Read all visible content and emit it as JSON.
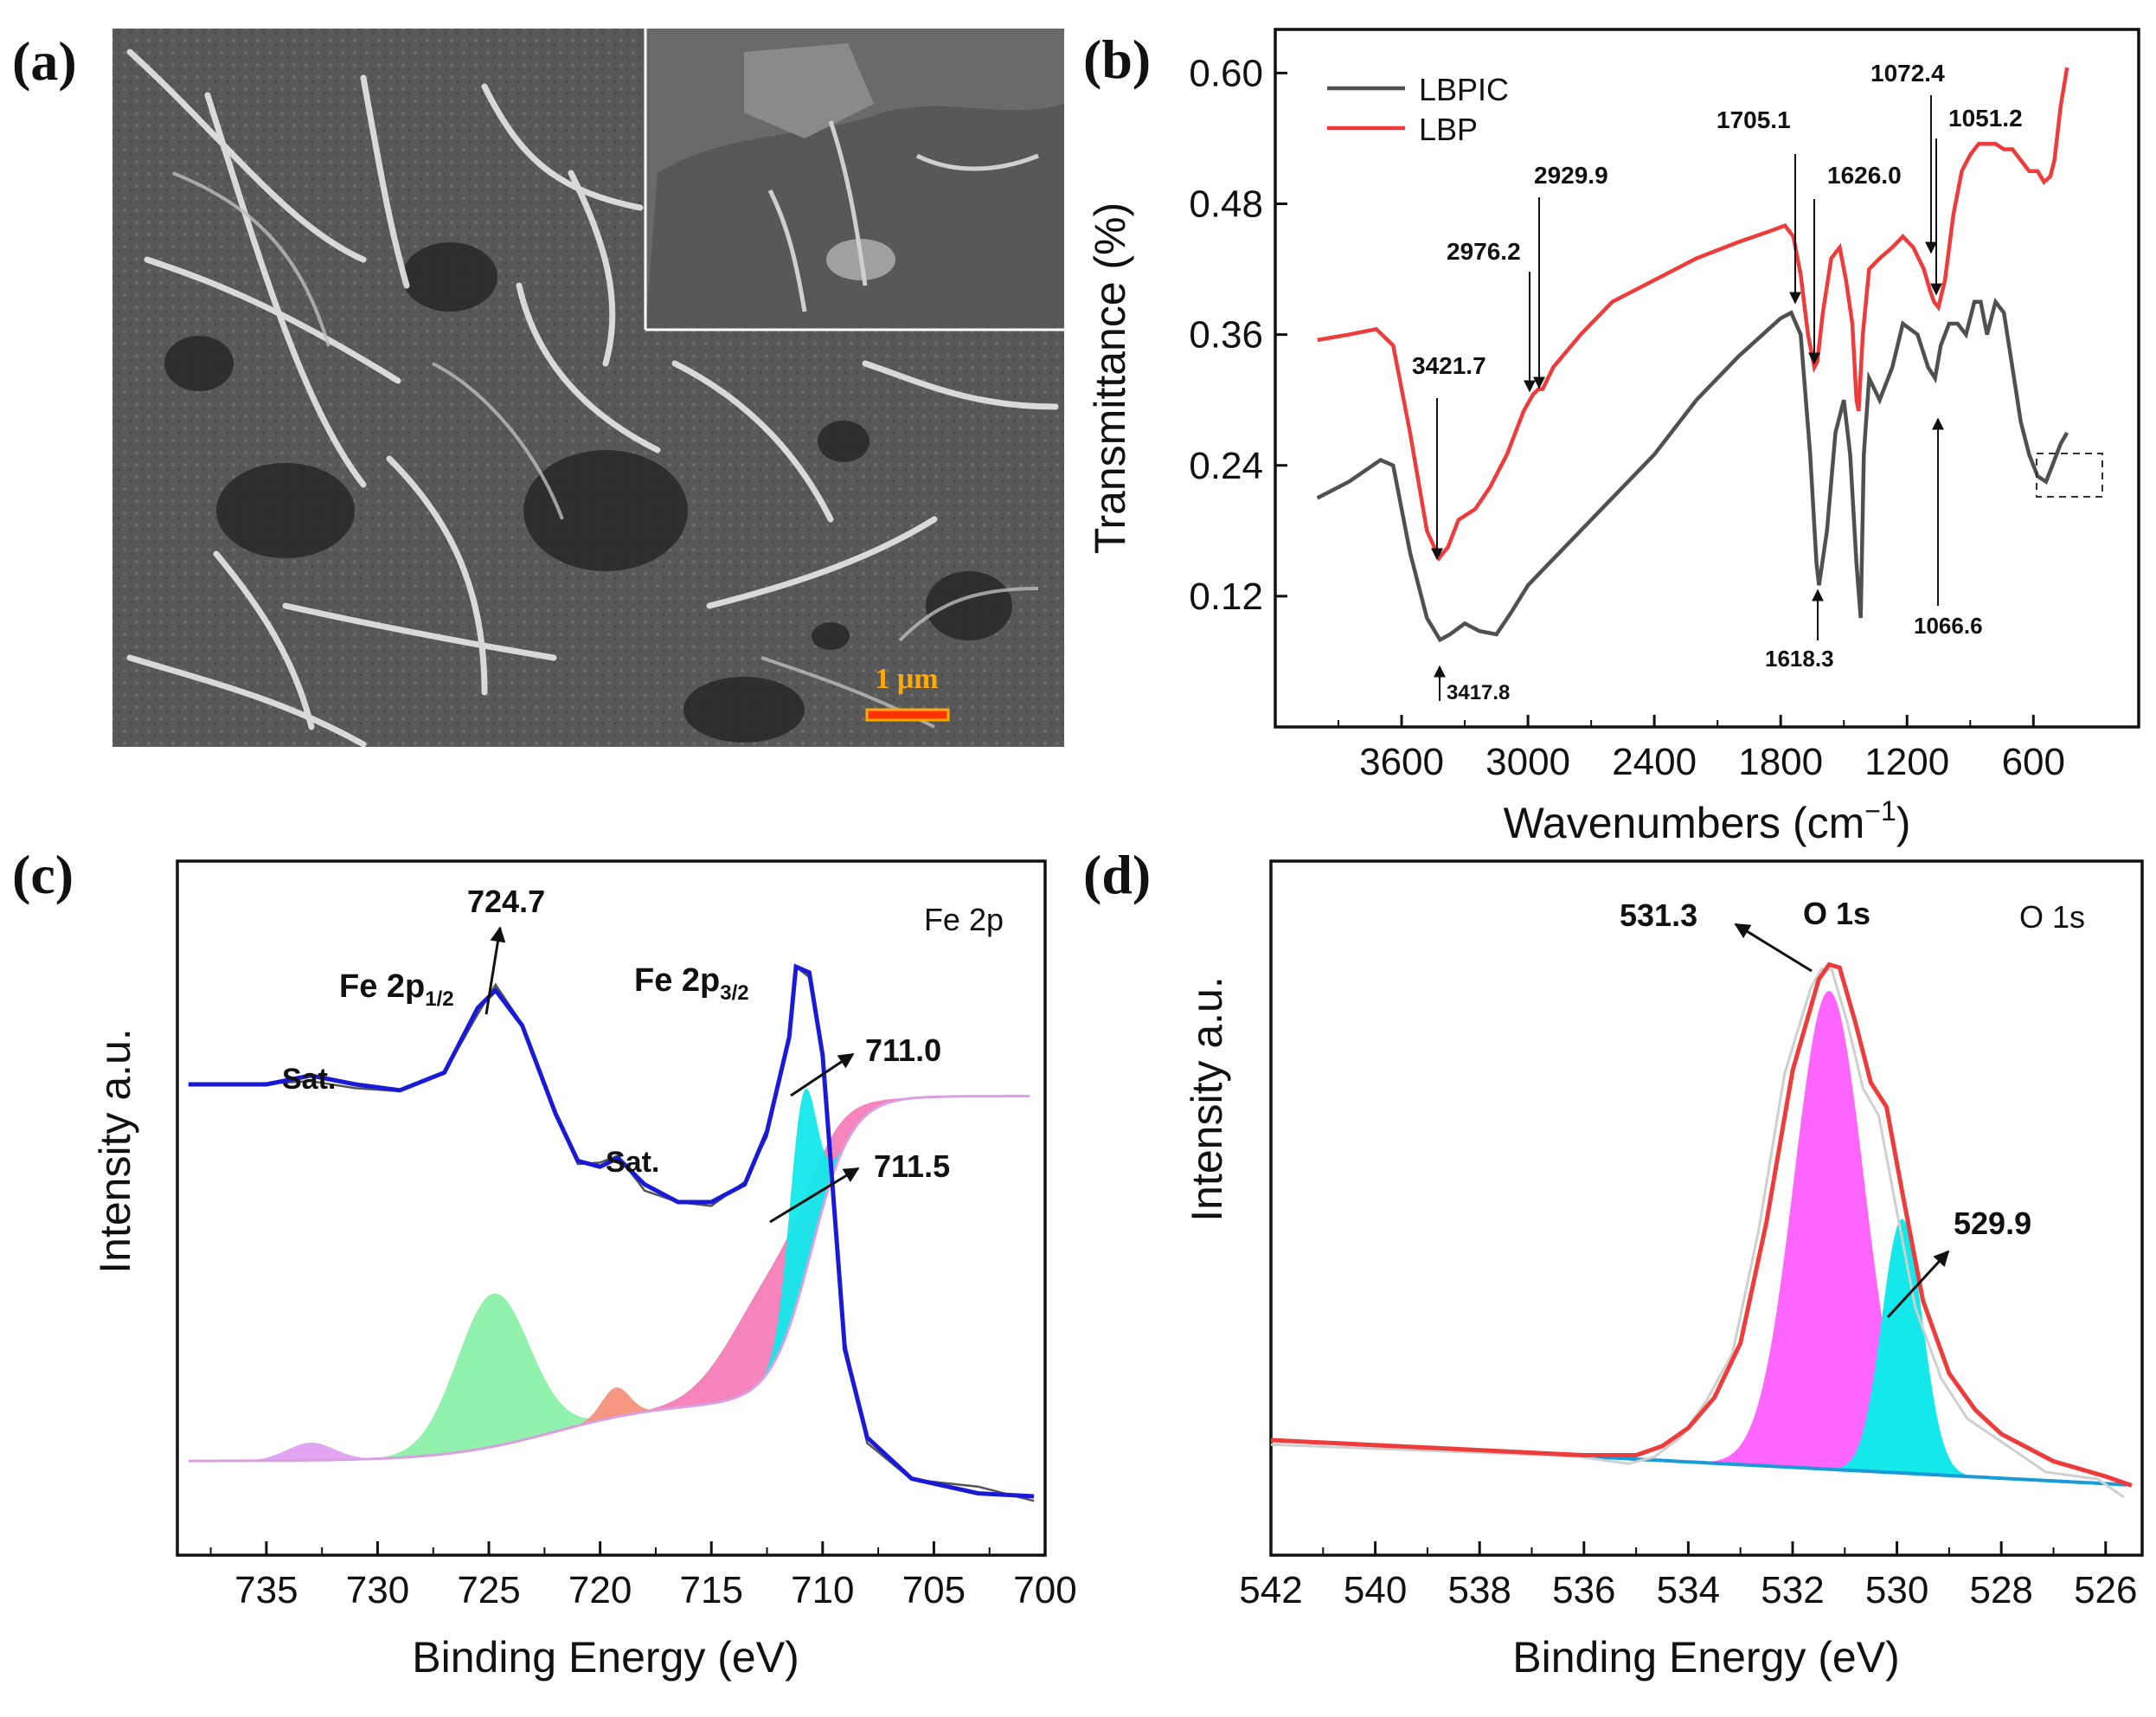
{
  "panels": {
    "a": {
      "label": "(a)",
      "scale_bar": "1 μm"
    },
    "b": {
      "label": "(b)"
    },
    "c": {
      "label": "(c)"
    },
    "d": {
      "label": "(d)"
    }
  },
  "colors": {
    "lbpic": "#505050",
    "lbp": "#ee3b3b",
    "fe_envelope": "#1a1ad6",
    "o_envelope": "#ee3b3b",
    "green": "#8cf0a8",
    "cyan": "#14e8ea",
    "pink": "#f47cb8",
    "magenta": "#ff66ff",
    "salmon": "#f4907c",
    "lilac": "#e0a0f0",
    "baseline_blue": "#1a9ad6",
    "scale_bar": "#ffaa00"
  },
  "chart_data": [
    {
      "panel": "b",
      "type": "line",
      "xlabel": "Wavenumbers (cm",
      "xlabel_sup": "−1",
      "xlabel_close": ")",
      "ylabel": "Transmittance (%)",
      "xlim": [
        4200,
        100
      ],
      "ylim": [
        0.0,
        0.64
      ],
      "xticks": [
        3600,
        3000,
        2400,
        1800,
        1200,
        600
      ],
      "yticks": [
        0.6,
        0.48,
        0.36,
        0.24,
        0.12
      ],
      "ytick_labels": [
        "0.60",
        "0.48",
        "0.36",
        "0.24",
        "0.12"
      ],
      "legend": [
        "LBPIC",
        "LBP"
      ],
      "series": [
        {
          "name": "LBPIC",
          "points": [
            [
              4000,
              0.21
            ],
            [
              3850,
              0.225
            ],
            [
              3700,
              0.245
            ],
            [
              3640,
              0.24
            ],
            [
              3560,
              0.16
            ],
            [
              3480,
              0.1
            ],
            [
              3418,
              0.08
            ],
            [
              3370,
              0.085
            ],
            [
              3300,
              0.095
            ],
            [
              3230,
              0.088
            ],
            [
              3150,
              0.085
            ],
            [
              3080,
              0.105
            ],
            [
              3000,
              0.13
            ],
            [
              2900,
              0.15
            ],
            [
              2700,
              0.19
            ],
            [
              2400,
              0.25
            ],
            [
              2200,
              0.3
            ],
            [
              2000,
              0.34
            ],
            [
              1800,
              0.375
            ],
            [
              1750,
              0.38
            ],
            [
              1705,
              0.36
            ],
            [
              1660,
              0.25
            ],
            [
              1630,
              0.15
            ],
            [
              1618,
              0.13
            ],
            [
              1580,
              0.18
            ],
            [
              1540,
              0.27
            ],
            [
              1500,
              0.3
            ],
            [
              1470,
              0.25
            ],
            [
              1440,
              0.15
            ],
            [
              1420,
              0.1
            ],
            [
              1405,
              0.25
            ],
            [
              1380,
              0.32
            ],
            [
              1330,
              0.3
            ],
            [
              1270,
              0.33
            ],
            [
              1220,
              0.37
            ],
            [
              1150,
              0.36
            ],
            [
              1100,
              0.33
            ],
            [
              1067,
              0.32
            ],
            [
              1040,
              0.35
            ],
            [
              1000,
              0.37
            ],
            [
              960,
              0.37
            ],
            [
              920,
              0.36
            ],
            [
              880,
              0.39
            ],
            [
              850,
              0.39
            ],
            [
              820,
              0.36
            ],
            [
              780,
              0.39
            ],
            [
              740,
              0.38
            ],
            [
              700,
              0.33
            ],
            [
              660,
              0.28
            ],
            [
              620,
              0.25
            ],
            [
              580,
              0.23
            ],
            [
              540,
              0.225
            ],
            [
              510,
              0.24
            ],
            [
              470,
              0.26
            ],
            [
              440,
              0.27
            ]
          ]
        },
        {
          "name": "LBP",
          "points": [
            [
              4000,
              0.355
            ],
            [
              3850,
              0.36
            ],
            [
              3720,
              0.365
            ],
            [
              3640,
              0.35
            ],
            [
              3560,
              0.27
            ],
            [
              3480,
              0.18
            ],
            [
              3422,
              0.155
            ],
            [
              3380,
              0.165
            ],
            [
              3330,
              0.19
            ],
            [
              3250,
              0.2
            ],
            [
              3180,
              0.22
            ],
            [
              3100,
              0.25
            ],
            [
              3020,
              0.29
            ],
            [
              2976,
              0.305
            ],
            [
              2950,
              0.31
            ],
            [
              2930,
              0.31
            ],
            [
              2880,
              0.33
            ],
            [
              2750,
              0.36
            ],
            [
              2600,
              0.39
            ],
            [
              2400,
              0.41
            ],
            [
              2200,
              0.43
            ],
            [
              2000,
              0.445
            ],
            [
              1850,
              0.455
            ],
            [
              1780,
              0.46
            ],
            [
              1740,
              0.45
            ],
            [
              1705,
              0.415
            ],
            [
              1670,
              0.36
            ],
            [
              1640,
              0.33
            ],
            [
              1626,
              0.335
            ],
            [
              1600,
              0.38
            ],
            [
              1560,
              0.43
            ],
            [
              1520,
              0.44
            ],
            [
              1490,
              0.41
            ],
            [
              1460,
              0.37
            ],
            [
              1440,
              0.3
            ],
            [
              1430,
              0.29
            ],
            [
              1410,
              0.36
            ],
            [
              1380,
              0.42
            ],
            [
              1330,
              0.43
            ],
            [
              1270,
              0.44
            ],
            [
              1220,
              0.45
            ],
            [
              1170,
              0.44
            ],
            [
              1120,
              0.42
            ],
            [
              1090,
              0.4
            ],
            [
              1072,
              0.39
            ],
            [
              1051,
              0.385
            ],
            [
              1020,
              0.41
            ],
            [
              980,
              0.47
            ],
            [
              940,
              0.51
            ],
            [
              900,
              0.525
            ],
            [
              860,
              0.535
            ],
            [
              820,
              0.535
            ],
            [
              780,
              0.535
            ],
            [
              740,
              0.53
            ],
            [
              700,
              0.53
            ],
            [
              660,
              0.52
            ],
            [
              620,
              0.51
            ],
            [
              580,
              0.51
            ],
            [
              550,
              0.5
            ],
            [
              520,
              0.505
            ],
            [
              500,
              0.52
            ],
            [
              470,
              0.57
            ],
            [
              440,
              0.605
            ]
          ]
        }
      ],
      "annotations": [
        "3421.7",
        "2976.2",
        "2929.9",
        "1705.1",
        "1626.0",
        "1072.4",
        "1051.2",
        "3417.8",
        "1618.3",
        "1066.6"
      ]
    },
    {
      "panel": "c",
      "type": "area",
      "xlabel": "Binding Energy (eV)",
      "ylabel": "Intensity a.u.",
      "xlim": [
        739,
        700
      ],
      "xticks": [
        735,
        730,
        725,
        720,
        715,
        710,
        705,
        700
      ],
      "corner_label": "Fe 2p",
      "envelope_points": [
        [
          738.5,
          0.8
        ],
        [
          735,
          0.8
        ],
        [
          733,
          0.815
        ],
        [
          731,
          0.8
        ],
        [
          729,
          0.79
        ],
        [
          727,
          0.82
        ],
        [
          725.5,
          0.93
        ],
        [
          724.7,
          0.96
        ],
        [
          723.5,
          0.9
        ],
        [
          722,
          0.75
        ],
        [
          721,
          0.67
        ],
        [
          720,
          0.66
        ],
        [
          719.2,
          0.675
        ],
        [
          718,
          0.63
        ],
        [
          716.5,
          0.6
        ],
        [
          715,
          0.6
        ],
        [
          713.5,
          0.63
        ],
        [
          712.5,
          0.72
        ],
        [
          711.5,
          0.88
        ],
        [
          711.2,
          1.0
        ],
        [
          710.6,
          0.99
        ],
        [
          710,
          0.85
        ],
        [
          709.5,
          0.6
        ],
        [
          709,
          0.35
        ],
        [
          708,
          0.2
        ],
        [
          706,
          0.13
        ],
        [
          703,
          0.105
        ],
        [
          700.5,
          0.1
        ]
      ],
      "annotations": [
        "724.7",
        "Fe 2p",
        "1/2",
        "Fe 2p",
        "3/2",
        "711.0",
        "711.5",
        "Sat.",
        "Sat."
      ]
    },
    {
      "panel": "d",
      "type": "area",
      "xlabel": "Binding Energy (eV)",
      "ylabel": "Intensity a.u.",
      "xlim": [
        542,
        525.3
      ],
      "xticks": [
        542,
        540,
        538,
        536,
        534,
        532,
        530,
        528,
        526
      ],
      "corner_label": "O 1s",
      "envelope_points": [
        [
          542,
          0.19
        ],
        [
          536,
          0.165
        ],
        [
          535,
          0.165
        ],
        [
          534.5,
          0.18
        ],
        [
          534,
          0.21
        ],
        [
          533.5,
          0.26
        ],
        [
          533,
          0.35
        ],
        [
          532.5,
          0.55
        ],
        [
          532,
          0.8
        ],
        [
          531.5,
          0.95
        ],
        [
          531.3,
          0.975
        ],
        [
          531.1,
          0.97
        ],
        [
          530.8,
          0.88
        ],
        [
          530.5,
          0.78
        ],
        [
          530.2,
          0.74
        ],
        [
          529.9,
          0.6
        ],
        [
          529.5,
          0.42
        ],
        [
          529,
          0.3
        ],
        [
          528.5,
          0.24
        ],
        [
          528,
          0.2
        ],
        [
          527,
          0.155
        ],
        [
          526,
          0.13
        ],
        [
          525.5,
          0.115
        ]
      ],
      "annotations": [
        "531.3",
        "O 1s",
        "529.9"
      ]
    }
  ]
}
